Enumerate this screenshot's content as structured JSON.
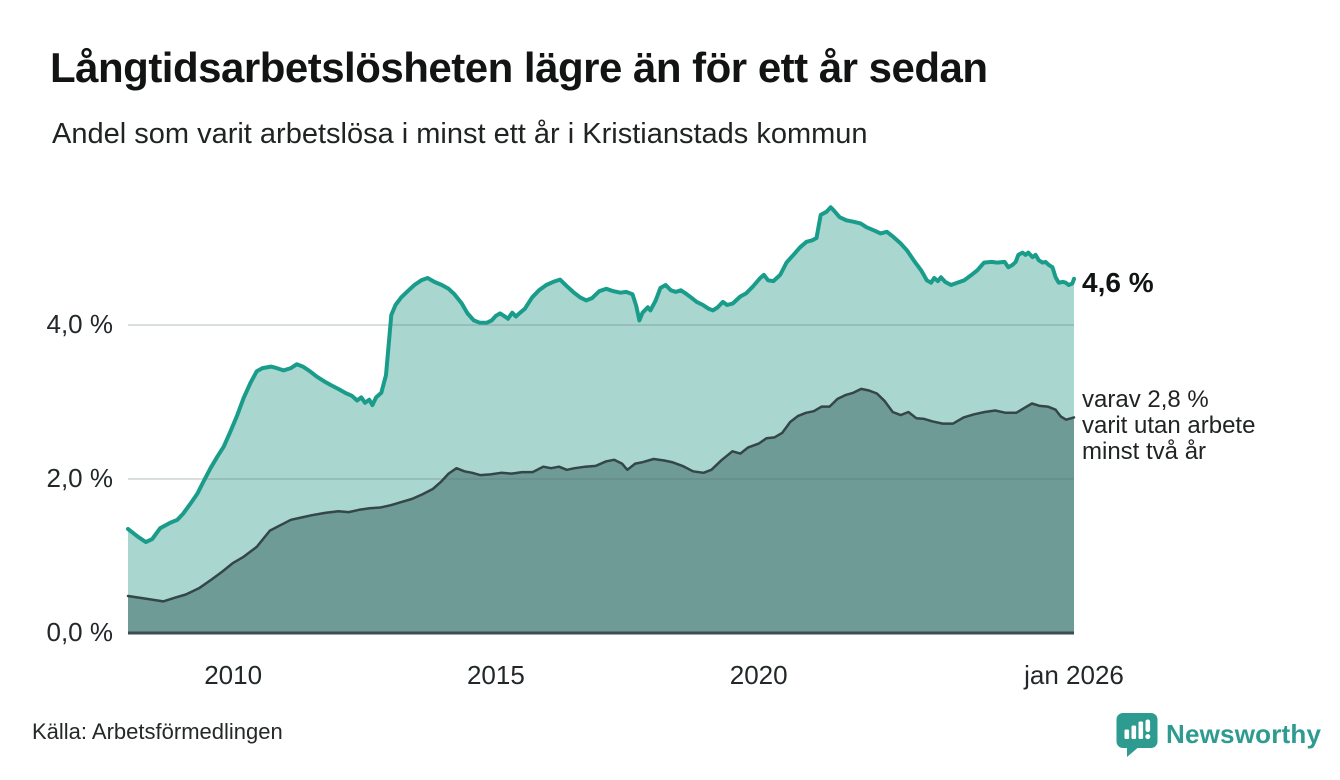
{
  "header": {
    "title": "Långtidsarbetslösheten lägre än för ett år sedan",
    "subtitle": "Andel som varit arbetslösa i minst ett år i Kristianstads kommun"
  },
  "annotations": {
    "total": "4,6 %",
    "two_year_lines": [
      "varav 2,8 %",
      "varit utan arbete",
      "minst två år"
    ]
  },
  "footer": {
    "source": "Källa: Arbetsförmedlingen",
    "brand": "Newsworthy"
  },
  "colors": {
    "line_total": "#1a9c8b",
    "fill_total": "#a9d6cf",
    "line_two_year": "#344648",
    "fill_two_year": "#6f9b96",
    "axis_line": "#3a4e50",
    "gridline": "rgba(84,110,110,0.22)",
    "brand_teal": "#2e9b90",
    "text_dark": "#1f2322"
  },
  "chart_data": {
    "type": "area",
    "title": "Långtidsarbetslösheten lägre än för ett år sedan",
    "subtitle": "Andel som varit arbetslösa i minst ett år i Kristianstads kommun",
    "unit": "%",
    "xlim": [
      2008.0,
      2026.0
    ],
    "ylim": [
      0,
      5.9
    ],
    "grid": "horizontal",
    "legend_position": "direct-labels-at-line-end",
    "x_ticks": [
      {
        "x": 2010,
        "label": "2010"
      },
      {
        "x": 2015,
        "label": "2015"
      },
      {
        "x": 2020,
        "label": "2020"
      },
      {
        "x": 2026,
        "label": "jan 2026"
      }
    ],
    "y_ticks": [
      {
        "y": 0,
        "label": "0,0 %"
      },
      {
        "y": 2,
        "label": "2,0 %"
      },
      {
        "y": 4,
        "label": "4,0 %"
      }
    ],
    "series": [
      {
        "name": "Arbetslösa minst ett år",
        "end_label": "4,6 %",
        "end_value": 4.6,
        "line_color": "#1a9c8b",
        "fill_color": "#a9d6cf",
        "line_width": 4,
        "points": [
          [
            2008.0,
            1.35
          ],
          [
            2008.19,
            1.25
          ],
          [
            2008.34,
            1.18
          ],
          [
            2008.46,
            1.22
          ],
          [
            2008.61,
            1.36
          ],
          [
            2008.8,
            1.43
          ],
          [
            2008.94,
            1.47
          ],
          [
            2009.05,
            1.55
          ],
          [
            2009.19,
            1.68
          ],
          [
            2009.32,
            1.81
          ],
          [
            2009.43,
            1.96
          ],
          [
            2009.57,
            2.14
          ],
          [
            2009.7,
            2.29
          ],
          [
            2009.82,
            2.42
          ],
          [
            2009.95,
            2.62
          ],
          [
            2010.08,
            2.83
          ],
          [
            2010.2,
            3.05
          ],
          [
            2010.33,
            3.25
          ],
          [
            2010.45,
            3.4
          ],
          [
            2010.56,
            3.44
          ],
          [
            2010.72,
            3.46
          ],
          [
            2010.83,
            3.44
          ],
          [
            2010.96,
            3.41
          ],
          [
            2011.1,
            3.44
          ],
          [
            2011.21,
            3.49
          ],
          [
            2011.33,
            3.46
          ],
          [
            2011.46,
            3.4
          ],
          [
            2011.59,
            3.33
          ],
          [
            2011.73,
            3.27
          ],
          [
            2011.86,
            3.22
          ],
          [
            2012.0,
            3.17
          ],
          [
            2012.13,
            3.12
          ],
          [
            2012.26,
            3.08
          ],
          [
            2012.36,
            3.02
          ],
          [
            2012.44,
            3.06
          ],
          [
            2012.51,
            2.99
          ],
          [
            2012.59,
            3.03
          ],
          [
            2012.65,
            2.96
          ],
          [
            2012.72,
            3.06
          ],
          [
            2012.82,
            3.12
          ],
          [
            2012.91,
            3.35
          ],
          [
            2013.01,
            4.13
          ],
          [
            2013.09,
            4.26
          ],
          [
            2013.2,
            4.36
          ],
          [
            2013.34,
            4.45
          ],
          [
            2013.45,
            4.52
          ],
          [
            2013.58,
            4.58
          ],
          [
            2013.7,
            4.61
          ],
          [
            2013.83,
            4.56
          ],
          [
            2013.97,
            4.52
          ],
          [
            2014.1,
            4.47
          ],
          [
            2014.21,
            4.4
          ],
          [
            2014.35,
            4.28
          ],
          [
            2014.46,
            4.15
          ],
          [
            2014.58,
            4.06
          ],
          [
            2014.69,
            4.03
          ],
          [
            2014.83,
            4.03
          ],
          [
            2014.92,
            4.06
          ],
          [
            2015.0,
            4.12
          ],
          [
            2015.08,
            4.15
          ],
          [
            2015.15,
            4.12
          ],
          [
            2015.23,
            4.08
          ],
          [
            2015.31,
            4.16
          ],
          [
            2015.38,
            4.11
          ],
          [
            2015.46,
            4.16
          ],
          [
            2015.55,
            4.21
          ],
          [
            2015.69,
            4.36
          ],
          [
            2015.82,
            4.45
          ],
          [
            2015.96,
            4.52
          ],
          [
            2016.09,
            4.56
          ],
          [
            2016.22,
            4.59
          ],
          [
            2016.34,
            4.51
          ],
          [
            2016.47,
            4.43
          ],
          [
            2016.6,
            4.36
          ],
          [
            2016.72,
            4.32
          ],
          [
            2016.83,
            4.35
          ],
          [
            2016.97,
            4.44
          ],
          [
            2017.1,
            4.47
          ],
          [
            2017.23,
            4.44
          ],
          [
            2017.37,
            4.42
          ],
          [
            2017.48,
            4.43
          ],
          [
            2017.6,
            4.4
          ],
          [
            2017.67,
            4.25
          ],
          [
            2017.73,
            4.06
          ],
          [
            2017.79,
            4.16
          ],
          [
            2017.89,
            4.23
          ],
          [
            2017.94,
            4.19
          ],
          [
            2018.04,
            4.32
          ],
          [
            2018.13,
            4.48
          ],
          [
            2018.23,
            4.52
          ],
          [
            2018.33,
            4.45
          ],
          [
            2018.42,
            4.43
          ],
          [
            2018.52,
            4.45
          ],
          [
            2018.61,
            4.41
          ],
          [
            2018.71,
            4.36
          ],
          [
            2018.82,
            4.3
          ],
          [
            2018.94,
            4.26
          ],
          [
            2019.05,
            4.21
          ],
          [
            2019.13,
            4.19
          ],
          [
            2019.22,
            4.23
          ],
          [
            2019.32,
            4.3
          ],
          [
            2019.4,
            4.26
          ],
          [
            2019.51,
            4.28
          ],
          [
            2019.65,
            4.37
          ],
          [
            2019.76,
            4.41
          ],
          [
            2019.89,
            4.5
          ],
          [
            2020.03,
            4.61
          ],
          [
            2020.1,
            4.65
          ],
          [
            2020.18,
            4.58
          ],
          [
            2020.28,
            4.57
          ],
          [
            2020.41,
            4.65
          ],
          [
            2020.53,
            4.81
          ],
          [
            2020.66,
            4.91
          ],
          [
            2020.79,
            5.01
          ],
          [
            2020.91,
            5.08
          ],
          [
            2021.02,
            5.1
          ],
          [
            2021.1,
            5.13
          ],
          [
            2021.18,
            5.43
          ],
          [
            2021.29,
            5.47
          ],
          [
            2021.37,
            5.53
          ],
          [
            2021.44,
            5.48
          ],
          [
            2021.54,
            5.4
          ],
          [
            2021.67,
            5.36
          ],
          [
            2021.81,
            5.34
          ],
          [
            2021.94,
            5.32
          ],
          [
            2022.05,
            5.27
          ],
          [
            2022.19,
            5.23
          ],
          [
            2022.32,
            5.19
          ],
          [
            2022.44,
            5.21
          ],
          [
            2022.57,
            5.14
          ],
          [
            2022.7,
            5.06
          ],
          [
            2022.82,
            4.97
          ],
          [
            2022.95,
            4.84
          ],
          [
            2023.09,
            4.71
          ],
          [
            2023.2,
            4.58
          ],
          [
            2023.28,
            4.55
          ],
          [
            2023.34,
            4.61
          ],
          [
            2023.41,
            4.57
          ],
          [
            2023.47,
            4.62
          ],
          [
            2023.55,
            4.56
          ],
          [
            2023.66,
            4.52
          ],
          [
            2023.78,
            4.55
          ],
          [
            2023.91,
            4.58
          ],
          [
            2024.05,
            4.65
          ],
          [
            2024.16,
            4.71
          ],
          [
            2024.29,
            4.81
          ],
          [
            2024.43,
            4.82
          ],
          [
            2024.54,
            4.81
          ],
          [
            2024.68,
            4.82
          ],
          [
            2024.75,
            4.75
          ],
          [
            2024.83,
            4.78
          ],
          [
            2024.89,
            4.82
          ],
          [
            2024.94,
            4.91
          ],
          [
            2025.02,
            4.94
          ],
          [
            2025.08,
            4.91
          ],
          [
            2025.13,
            4.94
          ],
          [
            2025.21,
            4.88
          ],
          [
            2025.27,
            4.91
          ],
          [
            2025.33,
            4.84
          ],
          [
            2025.4,
            4.81
          ],
          [
            2025.46,
            4.82
          ],
          [
            2025.52,
            4.78
          ],
          [
            2025.59,
            4.75
          ],
          [
            2025.65,
            4.62
          ],
          [
            2025.71,
            4.55
          ],
          [
            2025.79,
            4.56
          ],
          [
            2025.84,
            4.55
          ],
          [
            2025.9,
            4.52
          ],
          [
            2025.97,
            4.54
          ],
          [
            2026.0,
            4.6
          ]
        ]
      },
      {
        "name": "varav arbetslösa minst två år",
        "end_label": "varav 2,8 % varit utan arbete minst två år",
        "end_value": 2.8,
        "line_color": "#344648",
        "fill_color": "#6f9b96",
        "line_width": 2.5,
        "points": [
          [
            2008.0,
            0.48
          ],
          [
            2008.3,
            0.45
          ],
          [
            2008.67,
            0.41
          ],
          [
            2008.9,
            0.46
          ],
          [
            2009.1,
            0.5
          ],
          [
            2009.35,
            0.58
          ],
          [
            2009.6,
            0.7
          ],
          [
            2009.8,
            0.8
          ],
          [
            2010.0,
            0.91
          ],
          [
            2010.2,
            0.99
          ],
          [
            2010.45,
            1.12
          ],
          [
            2010.7,
            1.33
          ],
          [
            2010.9,
            1.4
          ],
          [
            2011.1,
            1.47
          ],
          [
            2011.3,
            1.5
          ],
          [
            2011.5,
            1.53
          ],
          [
            2011.75,
            1.56
          ],
          [
            2012.0,
            1.58
          ],
          [
            2012.2,
            1.57
          ],
          [
            2012.4,
            1.6
          ],
          [
            2012.6,
            1.62
          ],
          [
            2012.8,
            1.63
          ],
          [
            2013.0,
            1.66
          ],
          [
            2013.2,
            1.7
          ],
          [
            2013.4,
            1.74
          ],
          [
            2013.6,
            1.8
          ],
          [
            2013.8,
            1.87
          ],
          [
            2013.95,
            1.96
          ],
          [
            2014.1,
            2.07
          ],
          [
            2014.25,
            2.14
          ],
          [
            2014.4,
            2.1
          ],
          [
            2014.55,
            2.08
          ],
          [
            2014.7,
            2.05
          ],
          [
            2014.9,
            2.06
          ],
          [
            2015.1,
            2.08
          ],
          [
            2015.3,
            2.07
          ],
          [
            2015.5,
            2.09
          ],
          [
            2015.7,
            2.09
          ],
          [
            2015.9,
            2.16
          ],
          [
            2016.05,
            2.14
          ],
          [
            2016.2,
            2.16
          ],
          [
            2016.35,
            2.12
          ],
          [
            2016.5,
            2.14
          ],
          [
            2016.7,
            2.16
          ],
          [
            2016.9,
            2.17
          ],
          [
            2017.1,
            2.23
          ],
          [
            2017.25,
            2.25
          ],
          [
            2017.4,
            2.2
          ],
          [
            2017.5,
            2.12
          ],
          [
            2017.65,
            2.2
          ],
          [
            2017.8,
            2.22
          ],
          [
            2018.0,
            2.26
          ],
          [
            2018.2,
            2.24
          ],
          [
            2018.35,
            2.22
          ],
          [
            2018.55,
            2.17
          ],
          [
            2018.75,
            2.1
          ],
          [
            2018.95,
            2.08
          ],
          [
            2019.1,
            2.12
          ],
          [
            2019.3,
            2.25
          ],
          [
            2019.5,
            2.36
          ],
          [
            2019.65,
            2.33
          ],
          [
            2019.8,
            2.41
          ],
          [
            2020.0,
            2.46
          ],
          [
            2020.15,
            2.53
          ],
          [
            2020.3,
            2.54
          ],
          [
            2020.45,
            2.6
          ],
          [
            2020.6,
            2.74
          ],
          [
            2020.75,
            2.82
          ],
          [
            2020.9,
            2.86
          ],
          [
            2021.05,
            2.88
          ],
          [
            2021.2,
            2.94
          ],
          [
            2021.35,
            2.94
          ],
          [
            2021.5,
            3.04
          ],
          [
            2021.65,
            3.09
          ],
          [
            2021.8,
            3.12
          ],
          [
            2021.95,
            3.17
          ],
          [
            2022.1,
            3.15
          ],
          [
            2022.25,
            3.11
          ],
          [
            2022.4,
            3.01
          ],
          [
            2022.55,
            2.87
          ],
          [
            2022.7,
            2.83
          ],
          [
            2022.85,
            2.87
          ],
          [
            2023.0,
            2.79
          ],
          [
            2023.15,
            2.78
          ],
          [
            2023.3,
            2.75
          ],
          [
            2023.5,
            2.72
          ],
          [
            2023.7,
            2.72
          ],
          [
            2023.9,
            2.8
          ],
          [
            2024.1,
            2.84
          ],
          [
            2024.3,
            2.87
          ],
          [
            2024.5,
            2.89
          ],
          [
            2024.7,
            2.86
          ],
          [
            2024.9,
            2.86
          ],
          [
            2025.1,
            2.94
          ],
          [
            2025.2,
            2.98
          ],
          [
            2025.35,
            2.95
          ],
          [
            2025.5,
            2.94
          ],
          [
            2025.65,
            2.9
          ],
          [
            2025.75,
            2.81
          ],
          [
            2025.85,
            2.77
          ],
          [
            2026.0,
            2.8
          ]
        ]
      }
    ]
  }
}
